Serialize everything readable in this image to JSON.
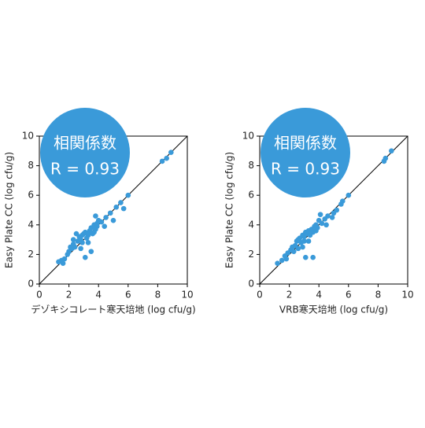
{
  "chart_data": [
    {
      "type": "scatter",
      "color": "#3a9ad9",
      "xlabel": "デゾキシコレート寒天培地 (log cfu/g)",
      "ylabel": "Easy Plate CC (log cfu/g)",
      "annotations": [
        "相関係数",
        "R = 0.93"
      ],
      "xlim": [
        0,
        10
      ],
      "ylim": [
        0,
        10
      ],
      "xticks": [
        0,
        2,
        4,
        6,
        8,
        10
      ],
      "yticks": [
        0,
        2,
        4,
        6,
        8,
        10
      ],
      "x": [
        1.3,
        1.5,
        1.7,
        1.9,
        2.0,
        2.2,
        2.3,
        2.4,
        2.5,
        2.6,
        2.7,
        2.8,
        2.9,
        3.0,
        3.1,
        3.2,
        3.3,
        3.4,
        3.5,
        3.6,
        3.7,
        3.8,
        3.9,
        4.0,
        3.8,
        4.2,
        4.5,
        4.8,
        5.0,
        5.2,
        5.5,
        5.7,
        6.0,
        3.5,
        3.1,
        2.8,
        3.9,
        3.4,
        8.3,
        8.6,
        8.9,
        2.3,
        3.7,
        4.4,
        1.6,
        2.1,
        2.9,
        3.3
      ],
      "y": [
        1.5,
        1.6,
        1.7,
        2.0,
        2.2,
        2.4,
        2.7,
        2.5,
        3.4,
        2.9,
        3.2,
        3.0,
        2.8,
        3.4,
        3.5,
        3.1,
        3.3,
        3.6,
        3.8,
        3.4,
        4.0,
        3.7,
        3.9,
        4.3,
        4.6,
        4.2,
        4.5,
        4.8,
        4.3,
        5.2,
        5.5,
        5.1,
        6.0,
        2.2,
        1.8,
        2.4,
        4.1,
        3.5,
        8.3,
        8.5,
        8.9,
        3.0,
        3.5,
        3.9,
        1.4,
        2.5,
        3.3,
        2.8
      ]
    },
    {
      "type": "scatter",
      "color": "#3a9ad9",
      "xlabel": "VRB寒天培地 (log cfu/g)",
      "ylabel": "Easy Plate CC (log cfu/g)",
      "annotations": [
        "相関係数",
        "R = 0.93"
      ],
      "xlim": [
        0,
        10
      ],
      "ylim": [
        0,
        10
      ],
      "xticks": [
        0,
        2,
        4,
        6,
        8,
        10
      ],
      "yticks": [
        0,
        2,
        4,
        6,
        8,
        10
      ],
      "x": [
        1.2,
        1.5,
        1.7,
        1.9,
        2.1,
        2.2,
        2.4,
        2.5,
        2.6,
        2.7,
        2.8,
        2.9,
        3.0,
        3.1,
        3.2,
        3.3,
        3.4,
        3.5,
        3.6,
        3.7,
        3.8,
        3.9,
        4.0,
        4.2,
        4.4,
        4.6,
        4.9,
        5.2,
        5.5,
        5.6,
        6.0,
        3.1,
        3.6,
        2.9,
        3.3,
        3.8,
        8.4,
        8.5,
        8.9,
        2.3,
        4.1,
        1.8,
        2.6,
        3.0,
        5.0,
        4.5
      ],
      "y": [
        1.4,
        1.6,
        1.9,
        2.1,
        2.3,
        2.5,
        2.6,
        2.9,
        3.0,
        3.1,
        2.8,
        3.3,
        3.2,
        3.5,
        3.4,
        3.6,
        3.3,
        3.7,
        3.5,
        3.9,
        4.0,
        3.8,
        4.3,
        4.1,
        4.4,
        4.6,
        4.5,
        5.0,
        5.4,
        5.6,
        6.0,
        1.8,
        1.8,
        2.5,
        2.9,
        3.6,
        8.3,
        8.5,
        9.0,
        2.2,
        4.7,
        1.7,
        2.4,
        2.9,
        4.8,
        4.0
      ]
    }
  ]
}
